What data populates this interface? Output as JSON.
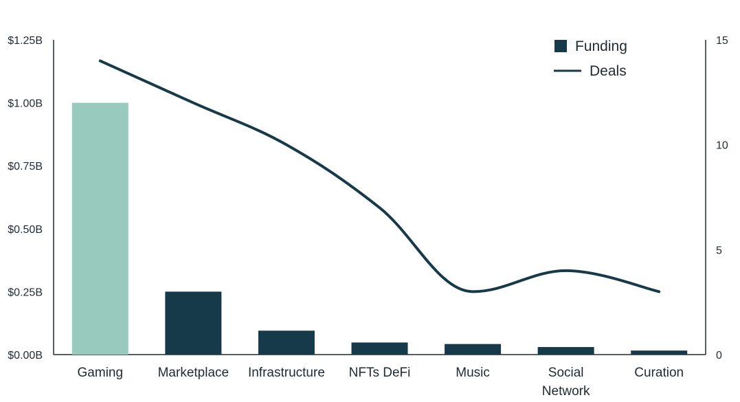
{
  "chart_data": {
    "type": "bar",
    "categories": [
      "Gaming",
      "Marketplace",
      "Infrastructure",
      "NFTs DeFi",
      "Music",
      "Social Network",
      "Curation"
    ],
    "category_label_lines": [
      [
        "Gaming"
      ],
      [
        "Marketplace"
      ],
      [
        "Infrastructure"
      ],
      [
        "NFTs DeFi"
      ],
      [
        "Music"
      ],
      [
        "Social",
        "Network"
      ],
      [
        "Curation"
      ]
    ],
    "series": [
      {
        "name": "Funding",
        "type": "bar",
        "axis": "left",
        "values": [
          1.0,
          0.25,
          0.095,
          0.048,
          0.042,
          0.03,
          0.016
        ]
      },
      {
        "name": "Deals",
        "type": "line",
        "axis": "right",
        "values": [
          14,
          12,
          10,
          7,
          3,
          4,
          3
        ]
      }
    ],
    "y_left": {
      "ylim": [
        0,
        1.25
      ],
      "ticks": [
        "$0.00B",
        "$0.25B",
        "$0.50B",
        "$0.75B",
        "$1.00B",
        "$1.25B"
      ]
    },
    "y_right": {
      "ylim": [
        0,
        15
      ],
      "ticks": [
        "0",
        "5",
        "10",
        "15"
      ]
    },
    "legend": {
      "placement": "top-right",
      "items": [
        "Funding",
        "Deals"
      ]
    },
    "colors": {
      "bar": "#163a4a",
      "bar_highlight": "#98cbbd",
      "line": "#163a4a",
      "axis": "#1f2a30"
    },
    "highlight_index": 0,
    "grid": false
  }
}
